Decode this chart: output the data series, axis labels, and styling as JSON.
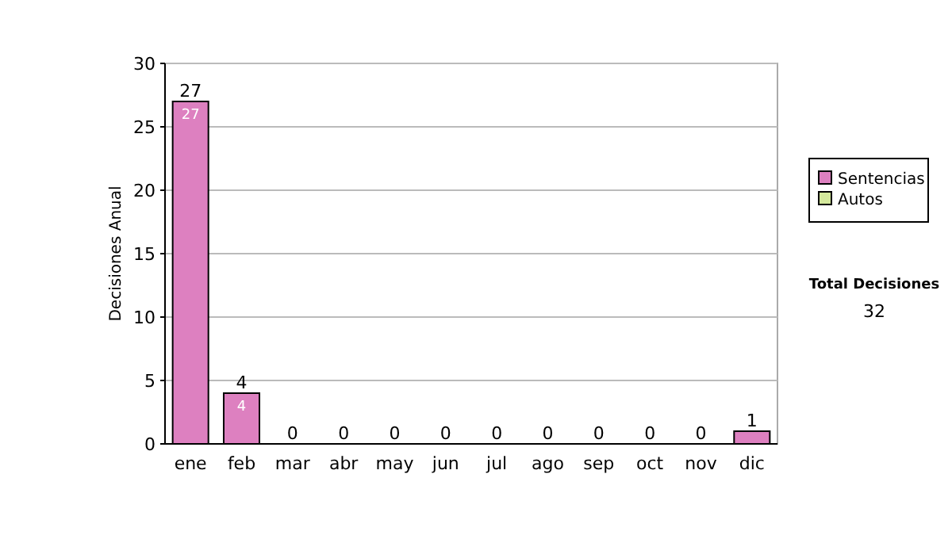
{
  "chart_data": {
    "type": "bar",
    "stacked": true,
    "ylabel": "Decisiones Anual",
    "categories": [
      "ene",
      "feb",
      "mar",
      "abr",
      "may",
      "jun",
      "jul",
      "ago",
      "sep",
      "oct",
      "nov",
      "dic"
    ],
    "series": [
      {
        "name": "Sentencias",
        "color": "#dd80c0",
        "values": [
          27,
          4,
          0,
          0,
          0,
          0,
          0,
          0,
          0,
          0,
          0,
          1
        ],
        "value_labels": [
          "27",
          "4",
          null,
          null,
          null,
          null,
          null,
          null,
          null,
          null,
          null,
          null
        ]
      },
      {
        "name": "Autos",
        "color": "#d4e89c",
        "values": [
          0,
          0,
          0,
          0,
          0,
          0,
          0,
          0,
          0,
          0,
          0,
          0
        ]
      }
    ],
    "totals": [
      "27",
      "4",
      "0",
      "0",
      "0",
      "0",
      "0",
      "0",
      "0",
      "0",
      "0",
      "1"
    ],
    "ylim": [
      0,
      30
    ],
    "yticks": [
      0,
      5,
      10,
      15,
      20,
      25,
      30
    ],
    "grid": "y",
    "legend": "right",
    "annotations": [
      "Total Decisiones",
      "32"
    ]
  }
}
